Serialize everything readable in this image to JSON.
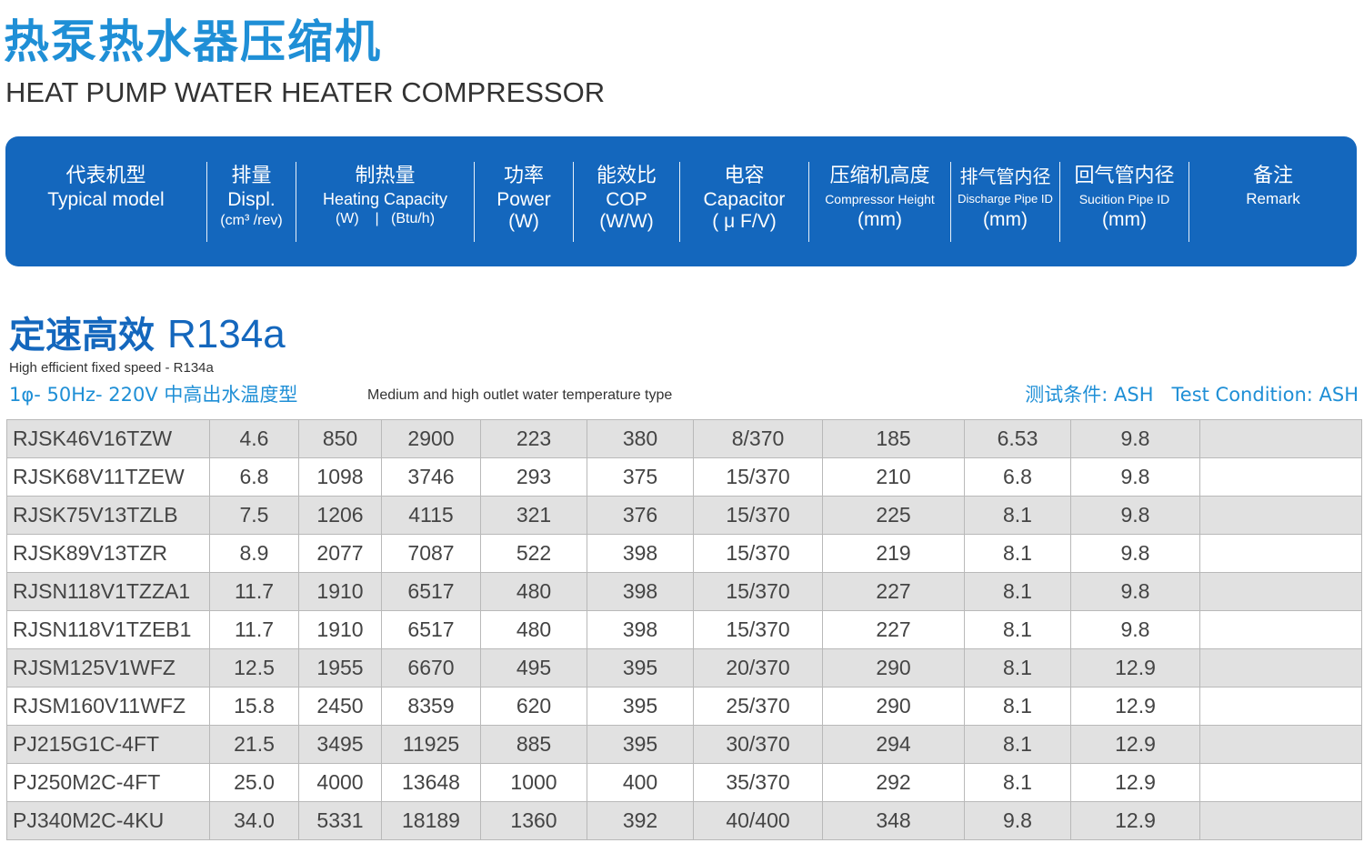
{
  "title": {
    "cn": "热泵热水器压缩机",
    "en": "HEAT PUMP WATER HEATER COMPRESSOR"
  },
  "header": {
    "model": {
      "cn": "代表机型",
      "en": "Typical model"
    },
    "displ": {
      "cn": "排量",
      "en": "Displ.",
      "unit": "(cm³ /rev)"
    },
    "heating": {
      "cn": "制热量",
      "en": "Heating Capacity",
      "unit": "(W)    |   (Btu/h)"
    },
    "power": {
      "cn": "功率",
      "en": "Power",
      "unit": "(W)"
    },
    "cop": {
      "cn": "能效比",
      "en": "COP",
      "unit": "(W/W)"
    },
    "capacitor": {
      "cn": "电容",
      "en": "Capacitor",
      "unit": "( μ F/V)"
    },
    "height": {
      "cn": "压缩机高度",
      "en": "Compressor Height",
      "unit": "(mm)"
    },
    "discharge": {
      "cn": "排气管内径",
      "en": "Discharge Pipe ID",
      "unit": "(mm)"
    },
    "suction": {
      "cn": "回气管内径",
      "en": "Sucition Pipe ID",
      "unit": "(mm)"
    },
    "remark": {
      "cn": "备注",
      "en": "Remark"
    }
  },
  "section": {
    "cn": "定速高效",
    "refrigerant": "R134a",
    "en": "High efficient fixed speed - R134a",
    "spec": "1φ- 50Hz- 220V  中高出水温度型",
    "spec_en": "Medium and high outlet water temperature type",
    "test_cn": "测试条件: ASH",
    "test_en": "Test Condition: ASH"
  },
  "rows": [
    {
      "model": "RJSK46V16TZW",
      "displ": "4.6",
      "w": "850",
      "btu": "2900",
      "power": "223",
      "cop": "380",
      "cap": "8/370",
      "height": "185",
      "discharge": "6.53",
      "suction": "9.8",
      "remark": ""
    },
    {
      "model": "RJSK68V11TZEW",
      "displ": "6.8",
      "w": "1098",
      "btu": "3746",
      "power": "293",
      "cop": "375",
      "cap": "15/370",
      "height": "210",
      "discharge": "6.8",
      "suction": "9.8",
      "remark": ""
    },
    {
      "model": "RJSK75V13TZLB",
      "displ": "7.5",
      "w": "1206",
      "btu": "4115",
      "power": "321",
      "cop": "376",
      "cap": "15/370",
      "height": "225",
      "discharge": "8.1",
      "suction": "9.8",
      "remark": ""
    },
    {
      "model": "RJSK89V13TZR",
      "displ": "8.9",
      "w": "2077",
      "btu": "7087",
      "power": "522",
      "cop": "398",
      "cap": "15/370",
      "height": "219",
      "discharge": "8.1",
      "suction": "9.8",
      "remark": ""
    },
    {
      "model": "RJSN118V1TZZA1",
      "displ": "11.7",
      "w": "1910",
      "btu": "6517",
      "power": "480",
      "cop": "398",
      "cap": "15/370",
      "height": "227",
      "discharge": "8.1",
      "suction": "9.8",
      "remark": ""
    },
    {
      "model": "RJSN118V1TZEB1",
      "displ": "11.7",
      "w": "1910",
      "btu": "6517",
      "power": "480",
      "cop": "398",
      "cap": "15/370",
      "height": "227",
      "discharge": "8.1",
      "suction": "9.8",
      "remark": ""
    },
    {
      "model": "RJSM125V1WFZ",
      "displ": "12.5",
      "w": "1955",
      "btu": "6670",
      "power": "495",
      "cop": "395",
      "cap": "20/370",
      "height": "290",
      "discharge": "8.1",
      "suction": "12.9",
      "remark": ""
    },
    {
      "model": "RJSM160V11WFZ",
      "displ": "15.8",
      "w": "2450",
      "btu": "8359",
      "power": "620",
      "cop": "395",
      "cap": "25/370",
      "height": "290",
      "discharge": "8.1",
      "suction": "12.9",
      "remark": ""
    },
    {
      "model": "PJ215G1C-4FT",
      "displ": "21.5",
      "w": "3495",
      "btu": "11925",
      "power": "885",
      "cop": "395",
      "cap": "30/370",
      "height": "294",
      "discharge": "8.1",
      "suction": "12.9",
      "remark": ""
    },
    {
      "model": "PJ250M2C-4FT",
      "displ": "25.0",
      "w": "4000",
      "btu": "13648",
      "power": "1000",
      "cop": "400",
      "cap": "35/370",
      "height": "292",
      "discharge": "8.1",
      "suction": "12.9",
      "remark": ""
    },
    {
      "model": "PJ340M2C-4KU",
      "displ": "34.0",
      "w": "5331",
      "btu": "18189",
      "power": "1360",
      "cop": "392",
      "cap": "40/400",
      "height": "348",
      "discharge": "9.8",
      "suction": "12.9",
      "remark": ""
    }
  ],
  "colors": {
    "title_blue": "#1f8fd6",
    "header_band": "#1467bd",
    "row_gray": "#e1e1e1"
  }
}
